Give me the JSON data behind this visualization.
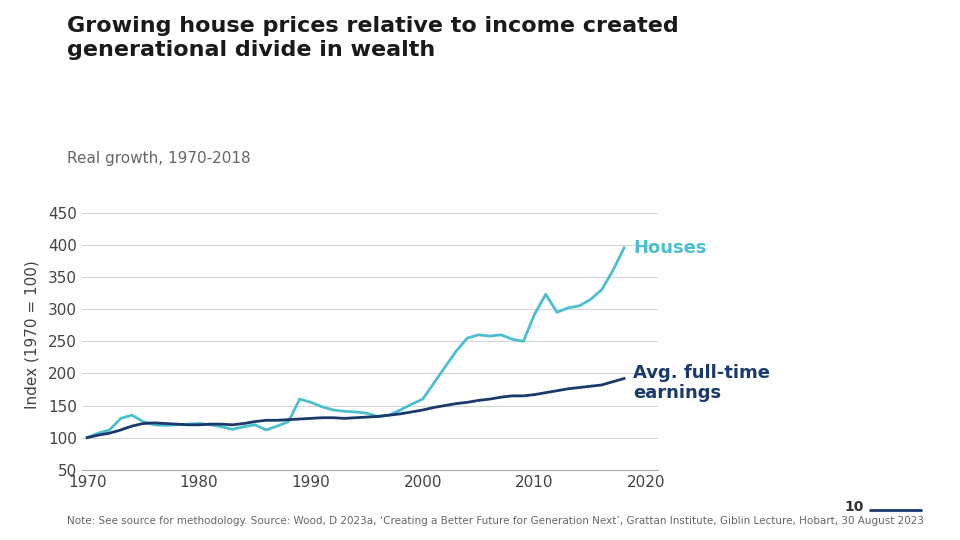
{
  "title": "Growing house prices relative to income created\ngenerational divide in wealth",
  "subtitle": "Real growth, 1970-2018",
  "ylabel": "Index (1970 = 100)",
  "footnote": "Note: See source for methodology. Source: Wood, D 2023a, ‘Creating a Better Future for Generation Next’, Grattan Institute, Giblin Lecture, Hobart, 30 August 2023",
  "page_number": "10",
  "ylim": [
    50,
    470
  ],
  "yticks": [
    50,
    100,
    150,
    200,
    250,
    300,
    350,
    400,
    450
  ],
  "xlim": [
    1969.5,
    2021
  ],
  "xticks": [
    1970,
    1980,
    1990,
    2000,
    2010,
    2020
  ],
  "background_color": "#ffffff",
  "title_color": "#1a1a1a",
  "subtitle_color": "#666666",
  "houses_color": "#4bbfcf",
  "earnings_color": "#1a3a6b",
  "houses_label": "Houses",
  "earnings_label": "Avg. full-time\nearnings",
  "houses_years": [
    1970,
    1971,
    1972,
    1973,
    1974,
    1975,
    1976,
    1977,
    1978,
    1979,
    1980,
    1981,
    1982,
    1983,
    1984,
    1985,
    1986,
    1987,
    1988,
    1989,
    1990,
    1991,
    1992,
    1993,
    1994,
    1995,
    1996,
    1997,
    1998,
    1999,
    2000,
    2001,
    2002,
    2003,
    2004,
    2005,
    2006,
    2007,
    2008,
    2009,
    2010,
    2011,
    2012,
    2013,
    2014,
    2015,
    2016,
    2017,
    2018
  ],
  "houses_values": [
    100,
    107,
    112,
    130,
    135,
    125,
    120,
    119,
    120,
    121,
    122,
    120,
    117,
    113,
    117,
    120,
    112,
    118,
    125,
    160,
    155,
    148,
    143,
    141,
    140,
    138,
    133,
    135,
    143,
    152,
    160,
    185,
    210,
    235,
    255,
    260,
    258,
    260,
    253,
    250,
    292,
    323,
    295,
    302,
    305,
    315,
    330,
    360,
    395
  ],
  "earnings_years": [
    1970,
    1971,
    1972,
    1973,
    1974,
    1975,
    1976,
    1977,
    1978,
    1979,
    1980,
    1981,
    1982,
    1983,
    1984,
    1985,
    1986,
    1987,
    1988,
    1989,
    1990,
    1991,
    1992,
    1993,
    1994,
    1995,
    1996,
    1997,
    1998,
    1999,
    2000,
    2001,
    2002,
    2003,
    2004,
    2005,
    2006,
    2007,
    2008,
    2009,
    2010,
    2011,
    2012,
    2013,
    2014,
    2015,
    2016,
    2017,
    2018
  ],
  "earnings_values": [
    100,
    104,
    107,
    112,
    118,
    122,
    123,
    122,
    121,
    120,
    120,
    121,
    121,
    120,
    122,
    125,
    127,
    127,
    128,
    129,
    130,
    131,
    131,
    130,
    131,
    132,
    133,
    135,
    137,
    140,
    143,
    147,
    150,
    153,
    155,
    158,
    160,
    163,
    165,
    165,
    167,
    170,
    173,
    176,
    178,
    180,
    182,
    187,
    192
  ]
}
